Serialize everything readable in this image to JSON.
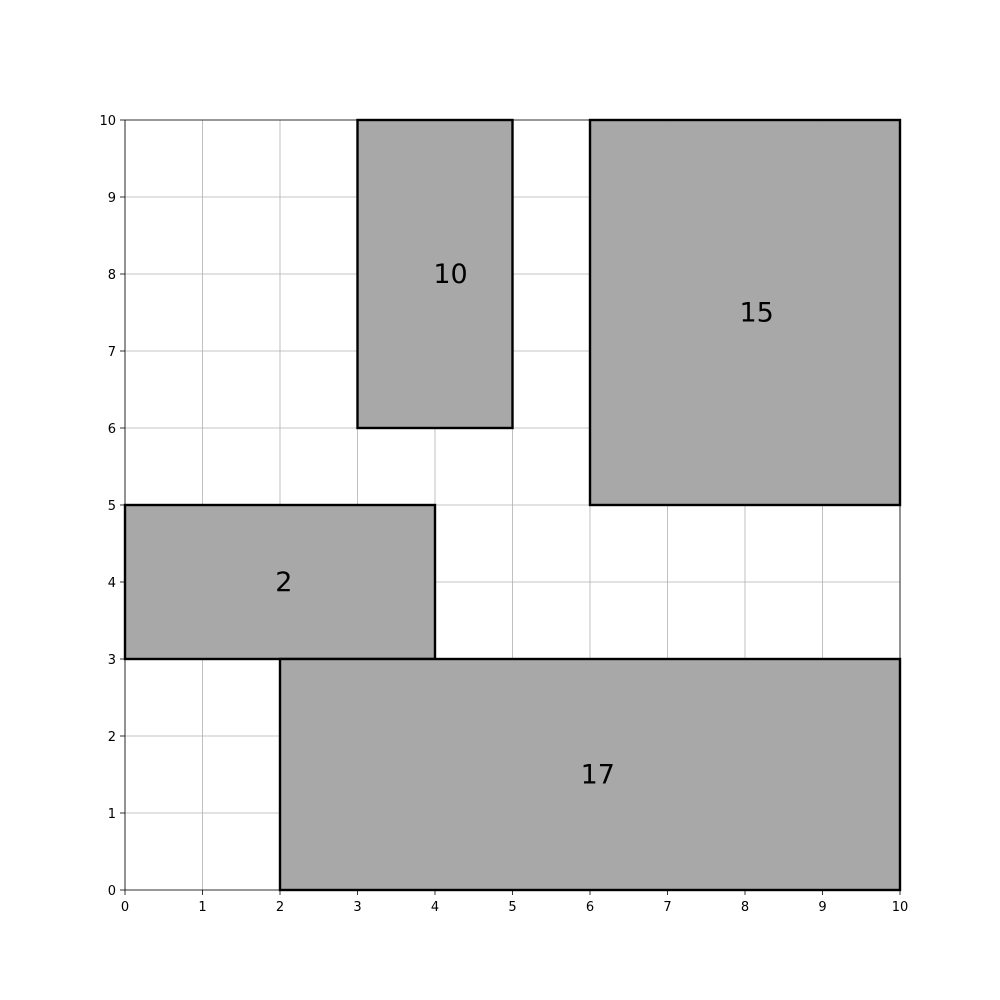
{
  "chart_data": {
    "type": "rectangle-grid",
    "xlim": [
      0,
      10
    ],
    "ylim": [
      0,
      10
    ],
    "x_ticks": [
      "0",
      "1",
      "2",
      "3",
      "4",
      "5",
      "6",
      "7",
      "8",
      "9",
      "10"
    ],
    "y_ticks": [
      "0",
      "1",
      "2",
      "3",
      "4",
      "5",
      "6",
      "7",
      "8",
      "9",
      "10"
    ],
    "grid": true,
    "fill_color": "#a6a6a6",
    "edge_color": "#000000",
    "rectangles": [
      {
        "label": "10",
        "x0": 3,
        "x1": 5,
        "y0": 6,
        "y1": 10,
        "label_x": 4.2,
        "label_y": 8.0
      },
      {
        "label": "15",
        "x0": 6,
        "x1": 10,
        "y0": 5,
        "y1": 10,
        "label_x": 8.15,
        "label_y": 7.5
      },
      {
        "label": "2",
        "x0": 0,
        "x1": 4,
        "y0": 3,
        "y1": 5,
        "label_x": 2.05,
        "label_y": 4.0
      },
      {
        "label": "17",
        "x0": 2,
        "x1": 10,
        "y0": 0,
        "y1": 3,
        "label_x": 6.1,
        "label_y": 1.5
      }
    ]
  }
}
